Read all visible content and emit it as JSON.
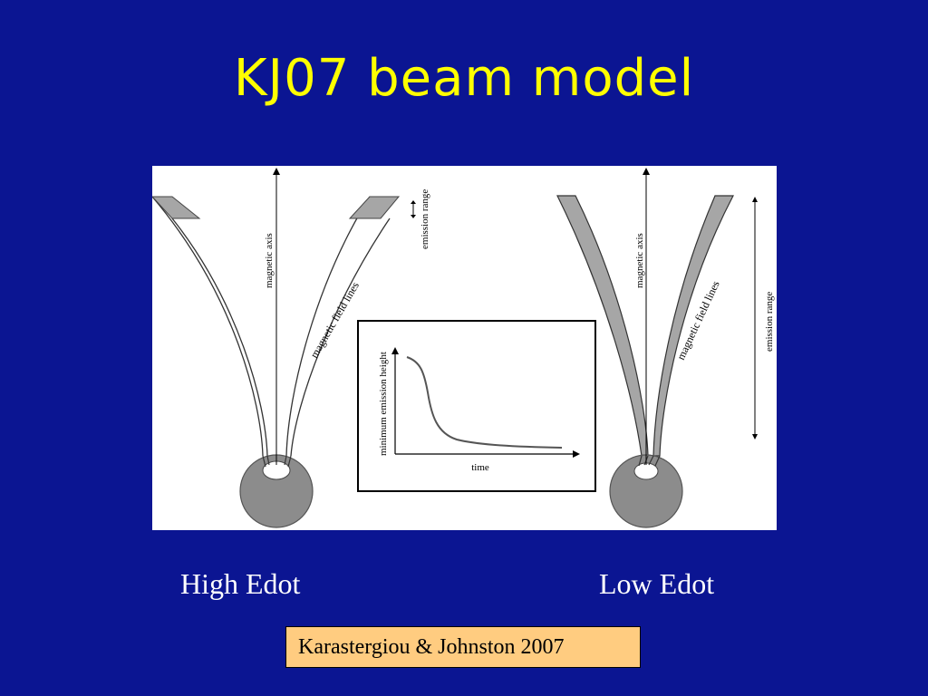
{
  "slide": {
    "title": "KJ07 beam model"
  },
  "figure": {
    "left_panel": {
      "axis_label": "magnetic axis",
      "field_label": "magnetic field lines",
      "range_label": "emission range"
    },
    "right_panel": {
      "axis_label": "magnetic axis",
      "field_label": "magnetic field lines",
      "range_label": "emission range"
    },
    "inset": {
      "ylabel": "minimum emission height",
      "xlabel": "time"
    }
  },
  "captions": {
    "left": "High Edot",
    "right": "Low Edot"
  },
  "citation": "Karastergiou & Johnston 2007",
  "colors": {
    "background": "#0b1592",
    "title": "#ffff00",
    "citation_box": "#ffcc80",
    "figure_background": "#ffffff",
    "beam_fill": "#a6a6a6",
    "star_fill": "#8c8c8c"
  }
}
